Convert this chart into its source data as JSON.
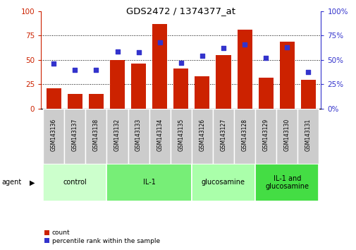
{
  "title": "GDS2472 / 1374377_at",
  "categories": [
    "GSM143136",
    "GSM143137",
    "GSM143138",
    "GSM143132",
    "GSM143133",
    "GSM143134",
    "GSM143135",
    "GSM143126",
    "GSM143127",
    "GSM143128",
    "GSM143129",
    "GSM143130",
    "GSM143131"
  ],
  "red_values": [
    21,
    15,
    15,
    50,
    46,
    87,
    41,
    33,
    55,
    81,
    32,
    69,
    30
  ],
  "blue_values": [
    46,
    40,
    40,
    59,
    58,
    68,
    47,
    54,
    62,
    66,
    52,
    63,
    38
  ],
  "red_color": "#cc2200",
  "blue_color": "#3333cc",
  "groups": [
    {
      "label": "control",
      "start": 0,
      "end": 3,
      "color": "#ccffcc"
    },
    {
      "label": "IL-1",
      "start": 3,
      "end": 7,
      "color": "#77ee77"
    },
    {
      "label": "glucosamine",
      "start": 7,
      "end": 10,
      "color": "#aaffaa"
    },
    {
      "label": "IL-1 and\nglucosamine",
      "start": 10,
      "end": 13,
      "color": "#44dd44"
    }
  ],
  "agent_label": "agent",
  "ylim": [
    0,
    100
  ],
  "legend_count": "count",
  "legend_pct": "percentile rank within the sample",
  "tick_label_bg": "#cccccc",
  "tick_label_border": "#aaaaaa"
}
